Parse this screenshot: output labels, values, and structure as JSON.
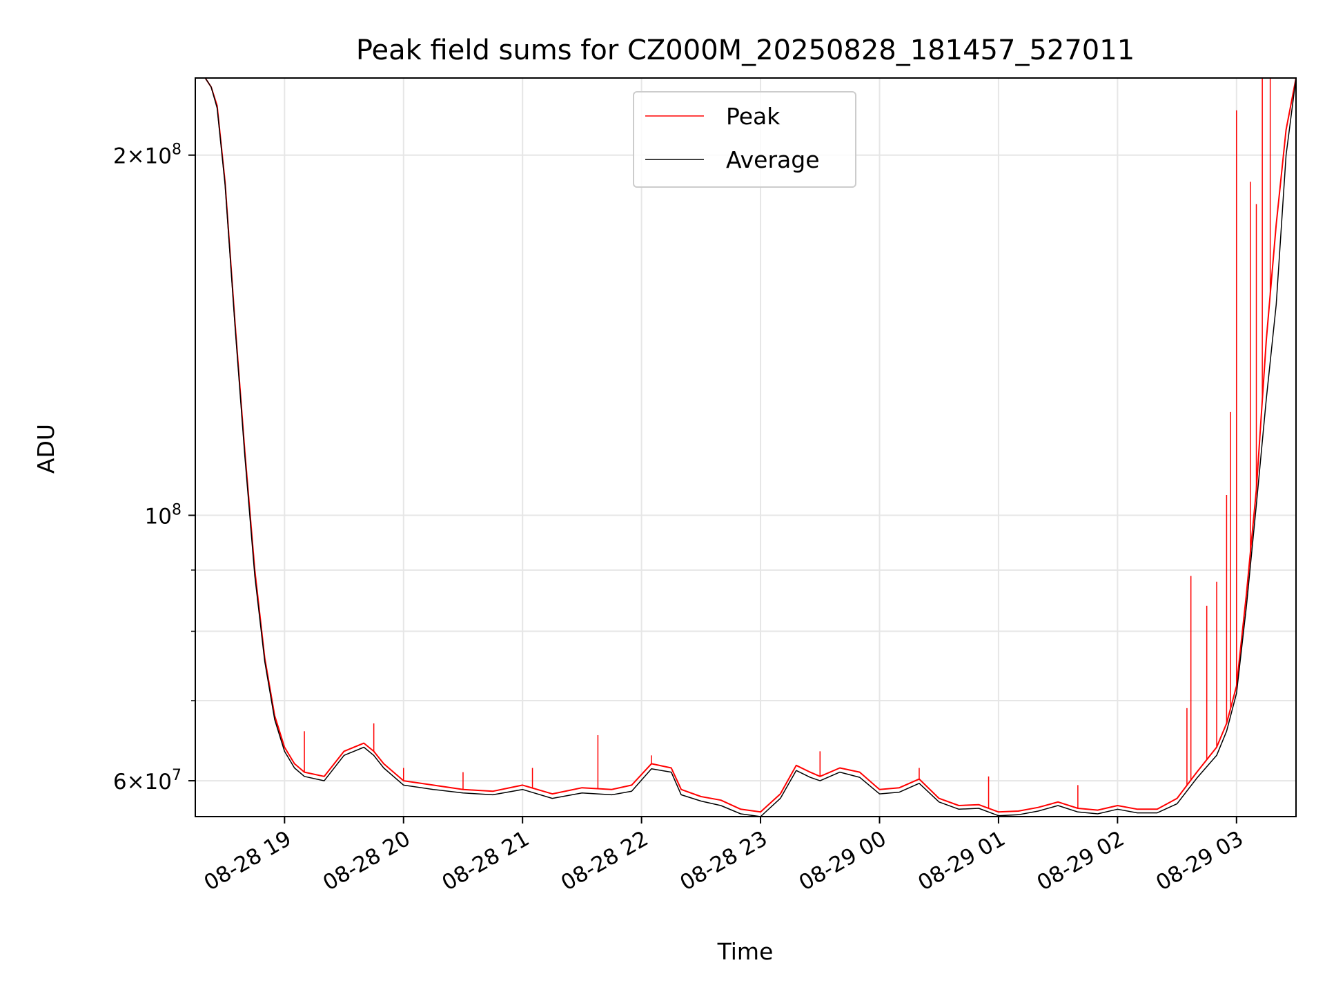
{
  "chart_data": {
    "type": "line",
    "title": "Peak field sums for CZ000M_20250828_181457_527011",
    "xlabel": "Time",
    "ylabel": "ADU",
    "y_scale": "log",
    "ylim": [
      56000000,
      232000000
    ],
    "xlim": [
      "2025-08-28 18:15",
      "2025-08-29 03:30"
    ],
    "grid": true,
    "legend_position": "top-center",
    "x_ticks": [
      {
        "t": "2025-08-28 19:00",
        "label": "08-28 19"
      },
      {
        "t": "2025-08-28 20:00",
        "label": "08-28 20"
      },
      {
        "t": "2025-08-28 21:00",
        "label": "08-28 21"
      },
      {
        "t": "2025-08-28 22:00",
        "label": "08-28 22"
      },
      {
        "t": "2025-08-28 23:00",
        "label": "08-28 23"
      },
      {
        "t": "2025-08-29 00:00",
        "label": "08-29 00"
      },
      {
        "t": "2025-08-29 01:00",
        "label": "08-29 01"
      },
      {
        "t": "2025-08-29 02:00",
        "label": "08-29 02"
      },
      {
        "t": "2025-08-29 03:00",
        "label": "08-29 03"
      }
    ],
    "y_major_ticks": [
      {
        "value": 60000000,
        "mant": "6",
        "exp": "7"
      },
      {
        "value": 100000000,
        "mant": "",
        "exp": "8"
      },
      {
        "value": 200000000,
        "mant": "2",
        "exp": "8"
      }
    ],
    "y_minor_ticks": [
      70000000,
      80000000,
      90000000
    ],
    "series": [
      {
        "name": "Peak",
        "color": "#ff0000",
        "x": [
          "2025-08-28 18:15",
          "2025-08-28 18:20",
          "2025-08-28 18:23",
          "2025-08-28 18:26",
          "2025-08-28 18:30",
          "2025-08-28 18:35",
          "2025-08-28 18:40",
          "2025-08-28 18:45",
          "2025-08-28 18:50",
          "2025-08-28 18:55",
          "2025-08-28 19:00",
          "2025-08-28 19:05",
          "2025-08-28 19:10",
          "2025-08-28 19:20",
          "2025-08-28 19:30",
          "2025-08-28 19:40",
          "2025-08-28 19:45",
          "2025-08-28 19:50",
          "2025-08-28 20:00",
          "2025-08-28 20:15",
          "2025-08-28 20:30",
          "2025-08-28 20:45",
          "2025-08-28 21:00",
          "2025-08-28 21:15",
          "2025-08-28 21:30",
          "2025-08-28 21:45",
          "2025-08-28 21:55",
          "2025-08-28 22:05",
          "2025-08-28 22:15",
          "2025-08-28 22:20",
          "2025-08-28 22:30",
          "2025-08-28 22:40",
          "2025-08-28 22:50",
          "2025-08-28 23:00",
          "2025-08-28 23:10",
          "2025-08-28 23:18",
          "2025-08-28 23:25",
          "2025-08-28 23:30",
          "2025-08-28 23:40",
          "2025-08-28 23:50",
          "2025-08-29 00:00",
          "2025-08-29 00:10",
          "2025-08-29 00:20",
          "2025-08-29 00:30",
          "2025-08-29 00:40",
          "2025-08-29 00:50",
          "2025-08-29 01:00",
          "2025-08-29 01:10",
          "2025-08-29 01:20",
          "2025-08-29 01:30",
          "2025-08-29 01:40",
          "2025-08-29 01:50",
          "2025-08-29 02:00",
          "2025-08-29 02:10",
          "2025-08-29 02:20",
          "2025-08-29 02:30",
          "2025-08-29 02:40",
          "2025-08-29 02:50",
          "2025-08-29 02:55",
          "2025-08-29 03:00",
          "2025-08-29 03:05",
          "2025-08-29 03:10",
          "2025-08-29 03:15",
          "2025-08-29 03:20",
          "2025-08-29 03:25",
          "2025-08-29 03:30"
        ],
        "values": [
          232000000,
          232000000,
          228000000,
          220000000,
          190000000,
          145000000,
          113000000,
          90000000,
          76000000,
          68000000,
          64000000,
          62000000,
          61000000,
          60500000,
          63500000,
          64500000,
          63500000,
          62000000,
          60000000,
          59500000,
          59000000,
          58800000,
          59500000,
          58500000,
          59200000,
          59000000,
          59500000,
          62000000,
          61500000,
          59000000,
          58200000,
          57800000,
          56800000,
          56500000,
          58500000,
          61800000,
          61000000,
          60500000,
          61500000,
          61000000,
          59000000,
          59200000,
          60200000,
          58000000,
          57200000,
          57300000,
          56500000,
          56600000,
          57000000,
          57600000,
          56900000,
          56700000,
          57200000,
          56800000,
          56800000,
          58000000,
          61000000,
          64000000,
          67000000,
          72000000,
          86000000,
          105000000,
          140000000,
          175000000,
          210000000,
          232000000
        ]
      },
      {
        "name": "Average",
        "color": "#000000",
        "x": [
          "2025-08-28 18:15",
          "2025-08-28 18:20",
          "2025-08-28 18:23",
          "2025-08-28 18:26",
          "2025-08-28 18:30",
          "2025-08-28 18:35",
          "2025-08-28 18:40",
          "2025-08-28 18:45",
          "2025-08-28 18:50",
          "2025-08-28 18:55",
          "2025-08-28 19:00",
          "2025-08-28 19:05",
          "2025-08-28 19:10",
          "2025-08-28 19:20",
          "2025-08-28 19:30",
          "2025-08-28 19:40",
          "2025-08-28 19:45",
          "2025-08-28 19:50",
          "2025-08-28 20:00",
          "2025-08-28 20:15",
          "2025-08-28 20:30",
          "2025-08-28 20:45",
          "2025-08-28 21:00",
          "2025-08-28 21:15",
          "2025-08-28 21:30",
          "2025-08-28 21:45",
          "2025-08-28 21:55",
          "2025-08-28 22:05",
          "2025-08-28 22:15",
          "2025-08-28 22:20",
          "2025-08-28 22:30",
          "2025-08-28 22:40",
          "2025-08-28 22:50",
          "2025-08-28 23:00",
          "2025-08-28 23:10",
          "2025-08-28 23:18",
          "2025-08-28 23:25",
          "2025-08-28 23:30",
          "2025-08-28 23:40",
          "2025-08-28 23:50",
          "2025-08-29 00:00",
          "2025-08-29 00:10",
          "2025-08-29 00:20",
          "2025-08-29 00:30",
          "2025-08-29 00:40",
          "2025-08-29 00:50",
          "2025-08-29 01:00",
          "2025-08-29 01:10",
          "2025-08-29 01:20",
          "2025-08-29 01:30",
          "2025-08-29 01:40",
          "2025-08-29 01:50",
          "2025-08-29 02:00",
          "2025-08-29 02:10",
          "2025-08-29 02:20",
          "2025-08-29 02:30",
          "2025-08-29 02:40",
          "2025-08-29 02:50",
          "2025-08-29 02:55",
          "2025-08-29 03:00",
          "2025-08-29 03:05",
          "2025-08-29 03:10",
          "2025-08-29 03:15",
          "2025-08-29 03:20",
          "2025-08-29 03:25",
          "2025-08-29 03:30"
        ],
        "values": [
          232000000,
          232000000,
          228000000,
          219000000,
          189000000,
          144000000,
          112000000,
          89000000,
          75500000,
          67500000,
          63500000,
          61500000,
          60500000,
          60000000,
          63000000,
          64000000,
          63000000,
          61500000,
          59500000,
          59000000,
          58600000,
          58400000,
          59000000,
          58000000,
          58600000,
          58400000,
          58800000,
          61400000,
          61000000,
          58400000,
          57700000,
          57200000,
          56300000,
          56000000,
          58000000,
          61200000,
          60400000,
          60000000,
          61000000,
          60400000,
          58500000,
          58700000,
          59700000,
          57600000,
          56800000,
          56900000,
          56100000,
          56200000,
          56600000,
          57200000,
          56500000,
          56300000,
          56800000,
          56400000,
          56400000,
          57400000,
          60300000,
          63000000,
          66000000,
          71000000,
          84000000,
          102000000,
          125000000,
          150000000,
          200000000,
          232000000
        ]
      }
    ],
    "spikes": [
      {
        "t": "2025-08-28 19:10",
        "value": 66000000
      },
      {
        "t": "2025-08-28 19:45",
        "value": 67000000
      },
      {
        "t": "2025-08-28 20:00",
        "value": 61500000
      },
      {
        "t": "2025-08-28 20:30",
        "value": 61000000
      },
      {
        "t": "2025-08-28 21:05",
        "value": 61500000
      },
      {
        "t": "2025-08-28 21:38",
        "value": 65500000
      },
      {
        "t": "2025-08-28 22:05",
        "value": 63000000
      },
      {
        "t": "2025-08-28 23:30",
        "value": 63500000
      },
      {
        "t": "2025-08-29 00:20",
        "value": 61500000
      },
      {
        "t": "2025-08-29 00:55",
        "value": 60500000
      },
      {
        "t": "2025-08-29 01:40",
        "value": 59500000
      },
      {
        "t": "2025-08-29 02:35",
        "value": 69000000
      },
      {
        "t": "2025-08-29 02:37",
        "value": 89000000
      },
      {
        "t": "2025-08-29 02:45",
        "value": 84000000
      },
      {
        "t": "2025-08-29 02:50",
        "value": 88000000
      },
      {
        "t": "2025-08-29 02:55",
        "value": 104000000
      },
      {
        "t": "2025-08-29 02:57",
        "value": 122000000
      },
      {
        "t": "2025-08-29 03:00",
        "value": 218000000
      },
      {
        "t": "2025-08-29 03:07",
        "value": 190000000
      },
      {
        "t": "2025-08-29 03:10",
        "value": 182000000
      },
      {
        "t": "2025-08-29 03:13",
        "value": 232000000
      },
      {
        "t": "2025-08-29 03:17",
        "value": 232000000
      }
    ]
  }
}
